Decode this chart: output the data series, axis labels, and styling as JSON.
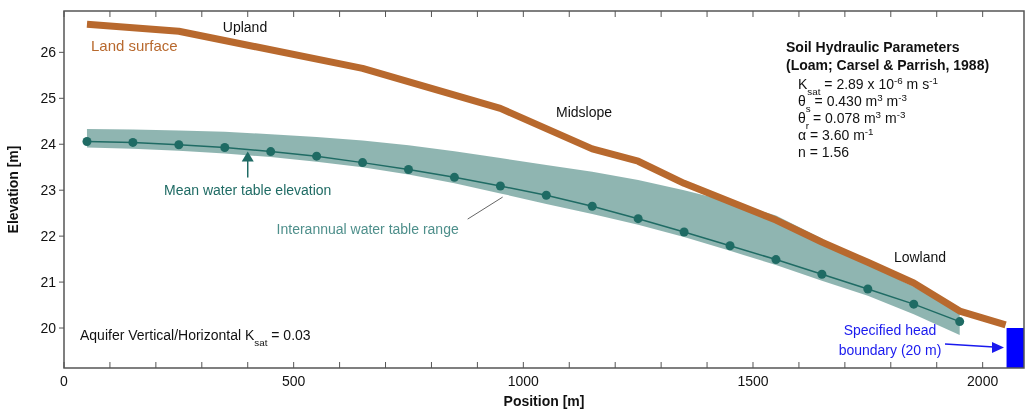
{
  "chart_data": {
    "type": "line",
    "xlabel": "Position [m]",
    "ylabel": "Elevation [m]",
    "xlim": [
      0,
      2090
    ],
    "ylim": [
      19.13,
      26.9
    ],
    "xticks": [
      0,
      {
        "value": 100,
        "label": null
      },
      {
        "value": 200,
        "label": null
      },
      {
        "value": 300,
        "label": null
      },
      {
        "value": 400,
        "label": null
      },
      500,
      {
        "value": 600,
        "label": null
      },
      {
        "value": 700,
        "label": null
      },
      {
        "value": 800,
        "label": null
      },
      {
        "value": 900,
        "label": null
      },
      1000,
      {
        "value": 1100,
        "label": null
      },
      {
        "value": 1200,
        "label": null
      },
      {
        "value": 1300,
        "label": null
      },
      {
        "value": 1400,
        "label": null
      },
      1500,
      {
        "value": 1600,
        "label": null
      },
      {
        "value": 1700,
        "label": null
      },
      {
        "value": 1800,
        "label": null
      },
      {
        "value": 1900,
        "label": null
      },
      2000
    ],
    "yticks": [
      20,
      21,
      22,
      23,
      24,
      25,
      26
    ],
    "grid": false,
    "series": [
      {
        "name": "Land surface",
        "color": "#b8692e",
        "marker": "none",
        "x": [
          50,
          250,
          650,
          950,
          1150,
          1250,
          1350,
          1550,
          1650,
          1750,
          1850,
          1950,
          2050
        ],
        "values": [
          26.61,
          26.46,
          25.65,
          24.78,
          23.9,
          23.63,
          23.15,
          22.35,
          21.87,
          21.43,
          20.98,
          20.37,
          20.07
        ]
      },
      {
        "name": "Mean water table elevation",
        "color": "#1f6b64",
        "marker": "circle",
        "x": [
          50,
          150,
          250,
          350,
          450,
          550,
          650,
          750,
          850,
          950,
          1050,
          1150,
          1250,
          1350,
          1450,
          1550,
          1650,
          1750,
          1850,
          1950
        ],
        "values": [
          24.06,
          24.04,
          23.99,
          23.93,
          23.84,
          23.74,
          23.6,
          23.45,
          23.28,
          23.09,
          22.89,
          22.65,
          22.38,
          22.09,
          21.79,
          21.49,
          21.17,
          20.85,
          20.52,
          20.14
        ],
        "upper": [
          24.33,
          24.32,
          24.3,
          24.27,
          24.22,
          24.16,
          24.08,
          23.98,
          23.85,
          23.7,
          23.55,
          23.4,
          23.22,
          23.0,
          22.75,
          22.45,
          21.95,
          21.38,
          20.9,
          20.35
        ],
        "lower": [
          23.93,
          23.9,
          23.86,
          23.8,
          23.72,
          23.62,
          23.5,
          23.34,
          23.15,
          22.93,
          22.7,
          22.48,
          22.25,
          21.98,
          21.68,
          21.37,
          21.03,
          20.7,
          20.3,
          19.85
        ]
      },
      {
        "type": "area",
        "color": "#0000ff",
        "x": [
          2052,
          2090
        ],
        "values": [
          20,
          20
        ]
      }
    ],
    "annotations": [
      "Upland",
      "Midslope",
      "Lowland",
      {
        "text": "Interannual water table range",
        "x": 955,
        "y": 22.85
      },
      "Specified head boundary (20 m)",
      "Soil Hydraulic Parameters",
      "(Loam; Carsel & Parrish, 1988)",
      "K$_{sat}$ = 2.89 x 10$^{-6}$ m s$^{-1}$",
      "θ$_{s}$ = 0.430 m$^{3}$ m$^{-3}$",
      "θ$_{r}$ = 0.078 m$^{3}$ m$^{-3}$",
      "α = 3.60 m$^{-1}$",
      "n = 1.56",
      "Aquifer Vertical/Horizontal K$_{sat}$ = 0.03"
    ]
  }
}
